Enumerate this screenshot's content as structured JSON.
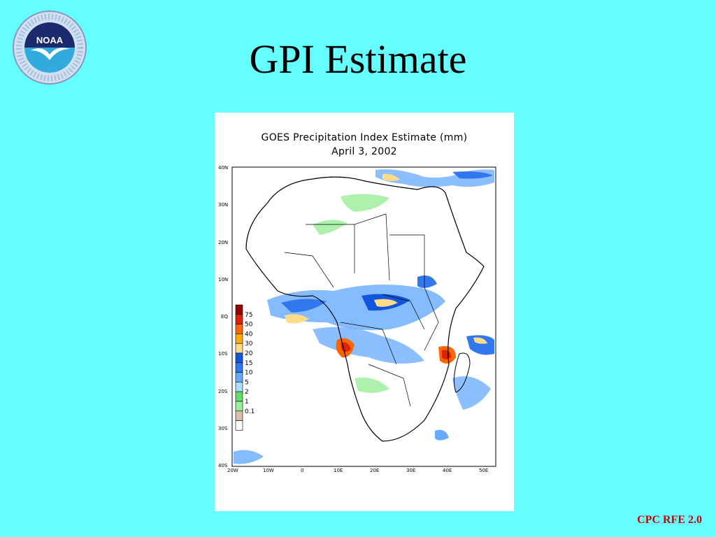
{
  "slide": {
    "title": "GPI Estimate",
    "footer": "CPC RFE 2.0"
  },
  "logo": {
    "text": "NOAA",
    "icon": "noaa-seagull-emblem"
  },
  "map": {
    "title_line1": "GOES Precipitation Index Estimate (mm)",
    "title_line2": "April 3, 2002",
    "lat_ticks": [
      "40N",
      "30N",
      "20N",
      "10N",
      "EQ",
      "10S",
      "20S",
      "30S",
      "40S"
    ],
    "lon_ticks": [
      "20W",
      "10W",
      "0",
      "10E",
      "20E",
      "30E",
      "40E",
      "50E"
    ],
    "legend": [
      {
        "label": "75",
        "color": "#990000"
      },
      {
        "label": "50",
        "color": "#dd2200"
      },
      {
        "label": "40",
        "color": "#ff6600"
      },
      {
        "label": "30",
        "color": "#ffaa00"
      },
      {
        "label": "20",
        "color": "#ffdd88"
      },
      {
        "label": "15",
        "color": "#1155dd"
      },
      {
        "label": "10",
        "color": "#3377ee"
      },
      {
        "label": "5",
        "color": "#66aaff"
      },
      {
        "label": "2",
        "color": "#aaddff"
      },
      {
        "label": "1",
        "color": "#66dd66"
      },
      {
        "label": "0.1",
        "color": "#99ee99"
      },
      {
        "label": "",
        "color": "#ddbbaa"
      },
      {
        "label": "",
        "color": "#ffffff"
      }
    ]
  }
}
